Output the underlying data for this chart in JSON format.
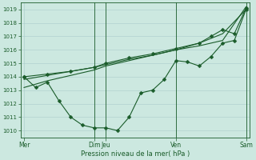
{
  "xlabel": "Pression niveau de la mer( hPa )",
  "bg_color": "#cce8e0",
  "grid_color": "#aacccc",
  "line_color": "#1a5c2a",
  "text_color": "#1a5c2a",
  "ylim": [
    1009.5,
    1019.5
  ],
  "yticks": [
    1010,
    1011,
    1012,
    1013,
    1014,
    1015,
    1016,
    1017,
    1018,
    1019
  ],
  "xtick_labels": [
    "Mer",
    "Dim",
    "Jeu",
    "Ven",
    "Sam"
  ],
  "xtick_positions": [
    0,
    6,
    7,
    13,
    19
  ],
  "vlines_x": [
    6,
    7,
    13,
    19
  ],
  "jagged_x": [
    0,
    1,
    2,
    3,
    4,
    5,
    6,
    7,
    8,
    9,
    10,
    11,
    12,
    13,
    14,
    15,
    16,
    17,
    18,
    19
  ],
  "jagged_y": [
    1014.0,
    1013.2,
    1013.6,
    1012.2,
    1011.0,
    1010.4,
    1010.2,
    1010.2,
    1010.0,
    1011.0,
    1012.8,
    1013.0,
    1013.8,
    1015.2,
    1015.1,
    1014.8,
    1015.5,
    1016.5,
    1016.7,
    1019.0
  ],
  "trend1_x": [
    0,
    2,
    4,
    6,
    7,
    9,
    11,
    13,
    15,
    17,
    19
  ],
  "trend1_y": [
    1013.2,
    1013.7,
    1014.1,
    1014.5,
    1014.8,
    1015.2,
    1015.6,
    1016.0,
    1016.3,
    1016.7,
    1019.2
  ],
  "trend2_x": [
    0,
    2,
    4,
    6,
    7,
    9,
    11,
    13,
    15,
    17,
    19
  ],
  "trend2_y": [
    1013.8,
    1014.1,
    1014.4,
    1014.7,
    1014.9,
    1015.3,
    1015.6,
    1016.0,
    1016.5,
    1017.2,
    1019.0
  ],
  "trend3_x": [
    0,
    2,
    4,
    6,
    7,
    9,
    11,
    13,
    15,
    16,
    17,
    18,
    19
  ],
  "trend3_y": [
    1014.0,
    1014.2,
    1014.4,
    1014.7,
    1015.0,
    1015.4,
    1015.7,
    1016.1,
    1016.5,
    1017.0,
    1017.5,
    1017.2,
    1019.1
  ],
  "marker_size": 2.5,
  "linewidth": 0.8
}
